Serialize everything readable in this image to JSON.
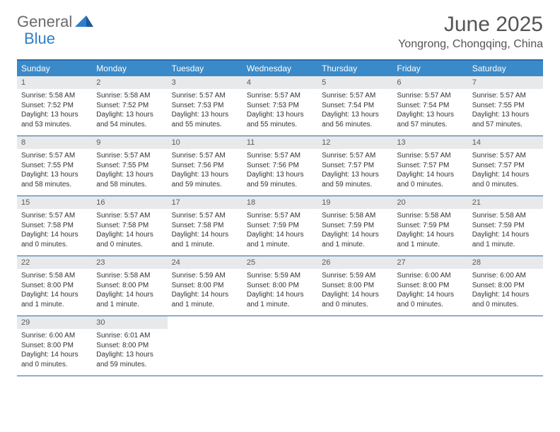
{
  "logo": {
    "part1": "General",
    "part2": "Blue"
  },
  "title": "June 2025",
  "location": "Yongrong, Chongqing, China",
  "colors": {
    "header_bar": "#3a8ac9",
    "border": "#2b6aa8",
    "daynum_bg": "#e7e9eb",
    "text": "#333333",
    "logo_gray": "#6a6a6a",
    "logo_blue": "#2f7ecb"
  },
  "dow": [
    "Sunday",
    "Monday",
    "Tuesday",
    "Wednesday",
    "Thursday",
    "Friday",
    "Saturday"
  ],
  "weeks": [
    [
      {
        "n": "1",
        "sr": "5:58 AM",
        "ss": "7:52 PM",
        "dl": "13 hours and 53 minutes."
      },
      {
        "n": "2",
        "sr": "5:58 AM",
        "ss": "7:52 PM",
        "dl": "13 hours and 54 minutes."
      },
      {
        "n": "3",
        "sr": "5:57 AM",
        "ss": "7:53 PM",
        "dl": "13 hours and 55 minutes."
      },
      {
        "n": "4",
        "sr": "5:57 AM",
        "ss": "7:53 PM",
        "dl": "13 hours and 55 minutes."
      },
      {
        "n": "5",
        "sr": "5:57 AM",
        "ss": "7:54 PM",
        "dl": "13 hours and 56 minutes."
      },
      {
        "n": "6",
        "sr": "5:57 AM",
        "ss": "7:54 PM",
        "dl": "13 hours and 57 minutes."
      },
      {
        "n": "7",
        "sr": "5:57 AM",
        "ss": "7:55 PM",
        "dl": "13 hours and 57 minutes."
      }
    ],
    [
      {
        "n": "8",
        "sr": "5:57 AM",
        "ss": "7:55 PM",
        "dl": "13 hours and 58 minutes."
      },
      {
        "n": "9",
        "sr": "5:57 AM",
        "ss": "7:55 PM",
        "dl": "13 hours and 58 minutes."
      },
      {
        "n": "10",
        "sr": "5:57 AM",
        "ss": "7:56 PM",
        "dl": "13 hours and 59 minutes."
      },
      {
        "n": "11",
        "sr": "5:57 AM",
        "ss": "7:56 PM",
        "dl": "13 hours and 59 minutes."
      },
      {
        "n": "12",
        "sr": "5:57 AM",
        "ss": "7:57 PM",
        "dl": "13 hours and 59 minutes."
      },
      {
        "n": "13",
        "sr": "5:57 AM",
        "ss": "7:57 PM",
        "dl": "14 hours and 0 minutes."
      },
      {
        "n": "14",
        "sr": "5:57 AM",
        "ss": "7:57 PM",
        "dl": "14 hours and 0 minutes."
      }
    ],
    [
      {
        "n": "15",
        "sr": "5:57 AM",
        "ss": "7:58 PM",
        "dl": "14 hours and 0 minutes."
      },
      {
        "n": "16",
        "sr": "5:57 AM",
        "ss": "7:58 PM",
        "dl": "14 hours and 0 minutes."
      },
      {
        "n": "17",
        "sr": "5:57 AM",
        "ss": "7:58 PM",
        "dl": "14 hours and 1 minute."
      },
      {
        "n": "18",
        "sr": "5:57 AM",
        "ss": "7:59 PM",
        "dl": "14 hours and 1 minute."
      },
      {
        "n": "19",
        "sr": "5:58 AM",
        "ss": "7:59 PM",
        "dl": "14 hours and 1 minute."
      },
      {
        "n": "20",
        "sr": "5:58 AM",
        "ss": "7:59 PM",
        "dl": "14 hours and 1 minute."
      },
      {
        "n": "21",
        "sr": "5:58 AM",
        "ss": "7:59 PM",
        "dl": "14 hours and 1 minute."
      }
    ],
    [
      {
        "n": "22",
        "sr": "5:58 AM",
        "ss": "8:00 PM",
        "dl": "14 hours and 1 minute."
      },
      {
        "n": "23",
        "sr": "5:58 AM",
        "ss": "8:00 PM",
        "dl": "14 hours and 1 minute."
      },
      {
        "n": "24",
        "sr": "5:59 AM",
        "ss": "8:00 PM",
        "dl": "14 hours and 1 minute."
      },
      {
        "n": "25",
        "sr": "5:59 AM",
        "ss": "8:00 PM",
        "dl": "14 hours and 1 minute."
      },
      {
        "n": "26",
        "sr": "5:59 AM",
        "ss": "8:00 PM",
        "dl": "14 hours and 0 minutes."
      },
      {
        "n": "27",
        "sr": "6:00 AM",
        "ss": "8:00 PM",
        "dl": "14 hours and 0 minutes."
      },
      {
        "n": "28",
        "sr": "6:00 AM",
        "ss": "8:00 PM",
        "dl": "14 hours and 0 minutes."
      }
    ],
    [
      {
        "n": "29",
        "sr": "6:00 AM",
        "ss": "8:00 PM",
        "dl": "14 hours and 0 minutes."
      },
      {
        "n": "30",
        "sr": "6:01 AM",
        "ss": "8:00 PM",
        "dl": "13 hours and 59 minutes."
      },
      null,
      null,
      null,
      null,
      null
    ]
  ],
  "labels": {
    "sunrise": "Sunrise: ",
    "sunset": "Sunset: ",
    "daylight": "Daylight: "
  }
}
